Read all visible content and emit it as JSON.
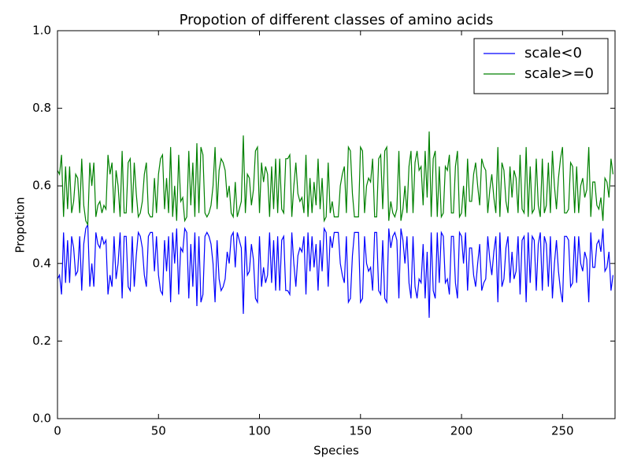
{
  "chart_data": {
    "type": "line",
    "title": "Propotion of different classes of amino acids",
    "xlabel": "Species",
    "ylabel": "Propotion",
    "x": [
      0,
      1,
      2,
      3,
      4,
      5,
      6,
      7,
      8,
      9,
      10,
      11,
      12,
      13,
      14,
      15,
      16,
      17,
      18,
      19,
      20,
      21,
      22,
      23,
      24,
      25,
      26,
      27,
      28,
      29,
      30,
      31,
      32,
      33,
      34,
      35,
      36,
      37,
      38,
      39,
      40,
      41,
      42,
      43,
      44,
      45,
      46,
      47,
      48,
      49,
      50,
      51,
      52,
      53,
      54,
      55,
      56,
      57,
      58,
      59,
      60,
      61,
      62,
      63,
      64,
      65,
      66,
      67,
      68,
      69,
      70,
      71,
      72,
      73,
      74,
      75,
      76,
      77,
      78,
      79,
      80,
      81,
      82,
      83,
      84,
      85,
      86,
      87,
      88,
      89,
      90,
      91,
      92,
      93,
      94,
      95,
      96,
      97,
      98,
      99,
      100,
      101,
      102,
      103,
      104,
      105,
      106,
      107,
      108,
      109,
      110,
      111,
      112,
      113,
      114,
      115,
      116,
      117,
      118,
      119,
      120,
      121,
      122,
      123,
      124,
      125,
      126,
      127,
      128,
      129,
      130,
      131,
      132,
      133,
      134,
      135,
      136,
      137,
      138,
      139,
      140,
      141,
      142,
      143,
      144,
      145,
      146,
      147,
      148,
      149,
      150,
      151,
      152,
      153,
      154,
      155,
      156,
      157,
      158,
      159,
      160,
      161,
      162,
      163,
      164,
      165,
      166,
      167,
      168,
      169,
      170,
      171,
      172,
      173,
      174,
      175,
      176,
      177,
      178,
      179,
      180,
      181,
      182,
      183,
      184,
      185,
      186,
      187,
      188,
      189,
      190,
      191,
      192,
      193,
      194,
      195,
      196,
      197,
      198,
      199,
      200,
      201,
      202,
      203,
      204,
      205,
      206,
      207,
      208,
      209,
      210,
      211,
      212,
      213,
      214,
      215,
      216,
      217,
      218,
      219,
      220,
      221,
      222,
      223,
      224,
      225,
      226,
      227,
      228,
      229,
      230,
      231,
      232,
      233,
      234,
      235,
      236,
      237,
      238,
      239,
      240,
      241,
      242,
      243,
      244,
      245,
      246,
      247,
      248,
      249,
      250,
      251,
      252,
      253,
      254,
      255,
      256,
      257,
      258,
      259,
      260,
      261,
      262,
      263,
      264,
      265,
      266,
      267,
      268,
      269,
      270,
      271,
      272,
      273,
      274,
      275
    ],
    "series": [
      {
        "name": "scale<0",
        "color": "#0000ff",
        "values": [
          0.36,
          0.37,
          0.32,
          0.48,
          0.35,
          0.46,
          0.35,
          0.47,
          0.44,
          0.37,
          0.38,
          0.47,
          0.33,
          0.45,
          0.49,
          0.5,
          0.34,
          0.4,
          0.34,
          0.48,
          0.45,
          0.44,
          0.47,
          0.45,
          0.46,
          0.32,
          0.37,
          0.34,
          0.47,
          0.36,
          0.4,
          0.48,
          0.31,
          0.47,
          0.47,
          0.34,
          0.33,
          0.47,
          0.34,
          0.42,
          0.48,
          0.47,
          0.44,
          0.37,
          0.34,
          0.47,
          0.48,
          0.48,
          0.38,
          0.47,
          0.37,
          0.33,
          0.32,
          0.46,
          0.38,
          0.47,
          0.3,
          0.48,
          0.4,
          0.49,
          0.32,
          0.44,
          0.43,
          0.49,
          0.48,
          0.31,
          0.45,
          0.34,
          0.48,
          0.29,
          0.47,
          0.3,
          0.32,
          0.47,
          0.48,
          0.47,
          0.45,
          0.4,
          0.3,
          0.46,
          0.36,
          0.33,
          0.34,
          0.36,
          0.43,
          0.4,
          0.47,
          0.48,
          0.39,
          0.48,
          0.46,
          0.44,
          0.27,
          0.47,
          0.37,
          0.38,
          0.45,
          0.41,
          0.31,
          0.3,
          0.47,
          0.34,
          0.39,
          0.35,
          0.37,
          0.48,
          0.35,
          0.46,
          0.33,
          0.47,
          0.33,
          0.46,
          0.47,
          0.33,
          0.33,
          0.32,
          0.48,
          0.4,
          0.34,
          0.42,
          0.44,
          0.43,
          0.47,
          0.32,
          0.48,
          0.38,
          0.47,
          0.39,
          0.45,
          0.33,
          0.46,
          0.38,
          0.49,
          0.48,
          0.34,
          0.47,
          0.44,
          0.48,
          0.48,
          0.48,
          0.4,
          0.37,
          0.35,
          0.47,
          0.3,
          0.31,
          0.42,
          0.48,
          0.48,
          0.48,
          0.3,
          0.31,
          0.47,
          0.4,
          0.38,
          0.39,
          0.33,
          0.48,
          0.48,
          0.33,
          0.32,
          0.46,
          0.31,
          0.3,
          0.49,
          0.44,
          0.47,
          0.48,
          0.46,
          0.31,
          0.49,
          0.46,
          0.4,
          0.47,
          0.35,
          0.31,
          0.47,
          0.34,
          0.31,
          0.36,
          0.35,
          0.45,
          0.31,
          0.43,
          0.26,
          0.48,
          0.33,
          0.31,
          0.48,
          0.35,
          0.48,
          0.47,
          0.35,
          0.36,
          0.32,
          0.47,
          0.47,
          0.35,
          0.31,
          0.48,
          0.47,
          0.4,
          0.48,
          0.33,
          0.44,
          0.44,
          0.37,
          0.34,
          0.4,
          0.45,
          0.33,
          0.35,
          0.36,
          0.47,
          0.41,
          0.37,
          0.43,
          0.47,
          0.3,
          0.48,
          0.34,
          0.36,
          0.44,
          0.47,
          0.35,
          0.43,
          0.36,
          0.38,
          0.47,
          0.32,
          0.46,
          0.47,
          0.3,
          0.48,
          0.35,
          0.47,
          0.46,
          0.33,
          0.45,
          0.48,
          0.33,
          0.47,
          0.45,
          0.34,
          0.47,
          0.31,
          0.4,
          0.46,
          0.38,
          0.33,
          0.3,
          0.47,
          0.47,
          0.46,
          0.34,
          0.35,
          0.47,
          0.35,
          0.47,
          0.4,
          0.38,
          0.43,
          0.41,
          0.3,
          0.48,
          0.39,
          0.39,
          0.45,
          0.46,
          0.43,
          0.49,
          0.38,
          0.39,
          0.43,
          0.33,
          0.37
        ]
      },
      {
        "name": "scale>=0",
        "color": "#008000",
        "values": [
          0.64,
          0.63,
          0.68,
          0.52,
          0.65,
          0.54,
          0.65,
          0.53,
          0.56,
          0.63,
          0.62,
          0.53,
          0.67,
          0.55,
          0.51,
          0.5,
          0.66,
          0.6,
          0.66,
          0.52,
          0.55,
          0.56,
          0.53,
          0.55,
          0.54,
          0.68,
          0.63,
          0.66,
          0.53,
          0.64,
          0.6,
          0.52,
          0.69,
          0.53,
          0.53,
          0.66,
          0.67,
          0.53,
          0.66,
          0.58,
          0.52,
          0.53,
          0.56,
          0.63,
          0.66,
          0.53,
          0.52,
          0.52,
          0.62,
          0.53,
          0.63,
          0.67,
          0.68,
          0.54,
          0.62,
          0.53,
          0.7,
          0.52,
          0.6,
          0.51,
          0.68,
          0.56,
          0.57,
          0.51,
          0.52,
          0.69,
          0.55,
          0.66,
          0.52,
          0.71,
          0.53,
          0.7,
          0.68,
          0.53,
          0.52,
          0.53,
          0.55,
          0.6,
          0.7,
          0.54,
          0.64,
          0.67,
          0.66,
          0.64,
          0.57,
          0.6,
          0.53,
          0.52,
          0.61,
          0.52,
          0.54,
          0.56,
          0.73,
          0.53,
          0.63,
          0.62,
          0.55,
          0.59,
          0.69,
          0.7,
          0.53,
          0.66,
          0.61,
          0.65,
          0.63,
          0.52,
          0.65,
          0.54,
          0.67,
          0.53,
          0.67,
          0.54,
          0.53,
          0.67,
          0.67,
          0.68,
          0.52,
          0.6,
          0.66,
          0.58,
          0.56,
          0.57,
          0.53,
          0.68,
          0.52,
          0.62,
          0.53,
          0.61,
          0.55,
          0.67,
          0.54,
          0.62,
          0.51,
          0.52,
          0.66,
          0.53,
          0.56,
          0.52,
          0.52,
          0.52,
          0.6,
          0.63,
          0.65,
          0.53,
          0.7,
          0.69,
          0.58,
          0.52,
          0.52,
          0.52,
          0.7,
          0.69,
          0.53,
          0.6,
          0.62,
          0.61,
          0.67,
          0.52,
          0.52,
          0.67,
          0.68,
          0.54,
          0.69,
          0.7,
          0.51,
          0.56,
          0.53,
          0.52,
          0.54,
          0.69,
          0.51,
          0.54,
          0.6,
          0.53,
          0.65,
          0.69,
          0.53,
          0.66,
          0.69,
          0.64,
          0.65,
          0.55,
          0.69,
          0.57,
          0.74,
          0.52,
          0.67,
          0.69,
          0.52,
          0.65,
          0.52,
          0.53,
          0.65,
          0.64,
          0.68,
          0.53,
          0.53,
          0.65,
          0.69,
          0.52,
          0.53,
          0.6,
          0.52,
          0.67,
          0.56,
          0.56,
          0.63,
          0.66,
          0.6,
          0.55,
          0.67,
          0.65,
          0.64,
          0.53,
          0.59,
          0.63,
          0.57,
          0.53,
          0.7,
          0.52,
          0.66,
          0.64,
          0.56,
          0.53,
          0.65,
          0.57,
          0.64,
          0.62,
          0.53,
          0.68,
          0.54,
          0.53,
          0.7,
          0.52,
          0.65,
          0.53,
          0.54,
          0.67,
          0.55,
          0.52,
          0.67,
          0.53,
          0.55,
          0.66,
          0.53,
          0.69,
          0.6,
          0.54,
          0.62,
          0.67,
          0.7,
          0.53,
          0.53,
          0.54,
          0.66,
          0.65,
          0.53,
          0.65,
          0.53,
          0.6,
          0.62,
          0.57,
          0.59,
          0.7,
          0.52,
          0.61,
          0.61,
          0.55,
          0.54,
          0.57,
          0.51,
          0.62,
          0.61,
          0.57,
          0.67,
          0.63
        ]
      }
    ],
    "xlim": [
      0,
      276
    ],
    "ylim": [
      0,
      1
    ],
    "xticks": [
      0,
      50,
      100,
      150,
      200,
      250
    ],
    "yticks": [
      {
        "value": 0,
        "label": "0.0"
      },
      0.2,
      0.4,
      0.6,
      0.8,
      {
        "value": 1,
        "label": "1.0"
      }
    ],
    "legend": "upper right"
  }
}
